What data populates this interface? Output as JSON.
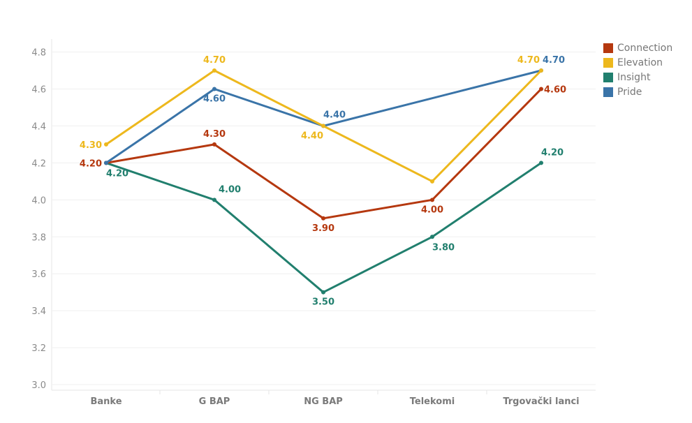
{
  "chart_data": {
    "type": "line",
    "categories": [
      "Banke",
      "G BAP",
      "NG BAP",
      "Telekomi",
      "Trgovački lanci"
    ],
    "yticks": [
      "3.0",
      "3.2",
      "3.4",
      "3.6",
      "3.8",
      "4.0",
      "4.2",
      "4.4",
      "4.6",
      "4.8"
    ],
    "ylim": [
      2.97,
      4.87
    ],
    "grid": true,
    "legend_position": "top-right",
    "series": [
      {
        "name": "Connection",
        "color": "#B5380F",
        "values": [
          4.2,
          4.3,
          3.9,
          4.0,
          4.6
        ],
        "labels": [
          "4.20",
          "4.30",
          "3.90",
          "4.00",
          "4.60"
        ]
      },
      {
        "name": "Elevation",
        "color": "#EDB81D",
        "values": [
          4.3,
          4.7,
          4.4,
          4.1,
          4.7
        ],
        "labels": [
          "4.30",
          "4.70",
          "4.40",
          "",
          "4.70"
        ]
      },
      {
        "name": "Insight",
        "color": "#217F6E",
        "values": [
          4.2,
          4.0,
          3.5,
          3.8,
          4.2
        ],
        "labels": [
          "4.20",
          "4.00",
          "3.50",
          "3.80",
          "4.20"
        ]
      },
      {
        "name": "Pride",
        "color": "#3A74A8",
        "values": [
          4.2,
          4.6,
          4.4,
          null,
          4.7
        ],
        "labels": [
          "",
          "4.60",
          "4.40",
          "",
          "4.70"
        ]
      }
    ]
  }
}
